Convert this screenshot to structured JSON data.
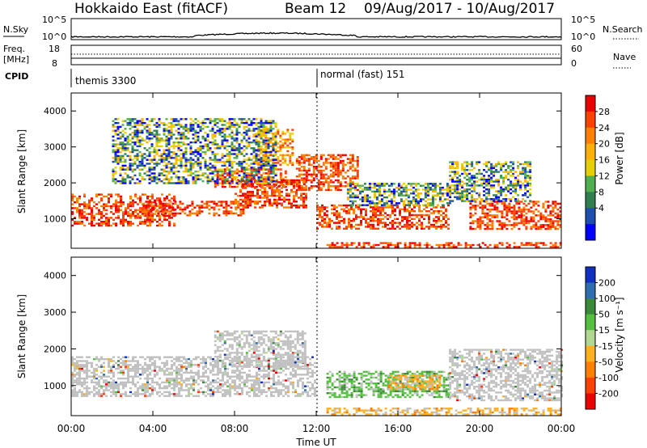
{
  "header": {
    "title": "Hokkaido East (fitACF)",
    "beam": "Beam 12",
    "date_range": "09/Aug/2017 - 10/Aug/2017"
  },
  "nsky_panel": {
    "left_label": "N.Sky",
    "left_tick_top": "10^5",
    "left_tick_bottom": "10^0",
    "right_tick_top": "10^5",
    "right_tick_bottom": "10^0",
    "right_label": "N.Search"
  },
  "freq_panel": {
    "left_label_1": "Freq.",
    "left_label_2": "[MHz]",
    "left_tick_top": "18",
    "left_tick_bottom": "8",
    "right_tick_top": "60",
    "right_tick_bottom": "0",
    "right_label": "Nave"
  },
  "cpid_panel": {
    "label": "CPID",
    "mode_1": "themis 3300",
    "mode_2": "normal (fast) 151"
  },
  "power_colorbar": {
    "label": "Power [dB]",
    "ticks": [
      "28",
      "24",
      "20",
      "16",
      "12",
      "8",
      "4"
    ],
    "colors": [
      "#ee0000",
      "#ff4000",
      "#ff8000",
      "#ffb000",
      "#e6d000",
      "#50b050",
      "#2f7f4f",
      "#1e4fae",
      "#0000ff"
    ]
  },
  "velocity_colorbar": {
    "label": "Velocity [m s⁻¹]",
    "ticks": [
      "200",
      "100",
      "50",
      "15",
      "-15",
      "-50",
      "-100",
      "-200"
    ],
    "colors": [
      "#1030c0",
      "#2e6eb0",
      "#3a8a3a",
      "#55c040",
      "#b0d890",
      "#ffb020",
      "#ff8000",
      "#ff4000",
      "#ee0000"
    ]
  },
  "axes": {
    "ylabel": "Slant Range [km]",
    "xlabel": "Time UT",
    "y_ticks": [
      "1000",
      "2000",
      "3000",
      "4000"
    ],
    "x_ticks": [
      "00:00",
      "04:00",
      "08:00",
      "12:00",
      "16:00",
      "20:00",
      "00:00"
    ]
  },
  "chart_data": {
    "type": "heatmap",
    "x_range_hours": [
      0,
      24
    ],
    "y_range_km": [
      180,
      4500
    ],
    "mode_switch_hour": 11.9,
    "power_regions": [
      {
        "t0": 0.0,
        "t1": 5.0,
        "r0": 800,
        "r1": 1700,
        "level": "high"
      },
      {
        "t0": 3.5,
        "t1": 8.5,
        "r0": 1100,
        "r1": 1500,
        "level": "high"
      },
      {
        "t0": 7.0,
        "t1": 10.5,
        "r0": 1900,
        "r1": 2400,
        "level": "high"
      },
      {
        "t0": 8.0,
        "t1": 11.5,
        "r0": 1300,
        "r1": 2100,
        "level": "high"
      },
      {
        "t0": 9.0,
        "t1": 10.8,
        "r0": 2500,
        "r1": 3500,
        "level": "medium"
      },
      {
        "t0": 11.0,
        "t1": 14.0,
        "r0": 1800,
        "r1": 2800,
        "level": "high"
      },
      {
        "t0": 12.0,
        "t1": 18.5,
        "r0": 700,
        "r1": 1400,
        "level": "high"
      },
      {
        "t0": 12.5,
        "t1": 24.0,
        "r0": 200,
        "r1": 350,
        "level": "high"
      },
      {
        "t0": 19.5,
        "t1": 24.0,
        "r0": 700,
        "r1": 1500,
        "level": "high"
      },
      {
        "t0": 2.0,
        "t1": 10.0,
        "r0": 2000,
        "r1": 3800,
        "level": "low"
      },
      {
        "t0": 13.5,
        "t1": 18.5,
        "r0": 1400,
        "r1": 2000,
        "level": "low"
      },
      {
        "t0": 18.5,
        "t1": 22.5,
        "r0": 1500,
        "r1": 2600,
        "level": "low"
      }
    ],
    "velocity_regions": [
      {
        "t0": 0.0,
        "t1": 12.0,
        "r0": 700,
        "r1": 1800,
        "class": "ground"
      },
      {
        "t0": 7.0,
        "t1": 11.5,
        "r0": 1500,
        "r1": 2500,
        "class": "ground"
      },
      {
        "t0": 12.5,
        "t1": 18.5,
        "r0": 700,
        "r1": 1400,
        "class": "positive"
      },
      {
        "t0": 15.5,
        "t1": 18.0,
        "r0": 900,
        "r1": 1300,
        "class": "negative"
      },
      {
        "t0": 12.5,
        "t1": 24.0,
        "r0": 200,
        "r1": 400,
        "class": "negative"
      },
      {
        "t0": 18.5,
        "t1": 24.0,
        "r0": 600,
        "r1": 2000,
        "class": "ground"
      }
    ]
  }
}
